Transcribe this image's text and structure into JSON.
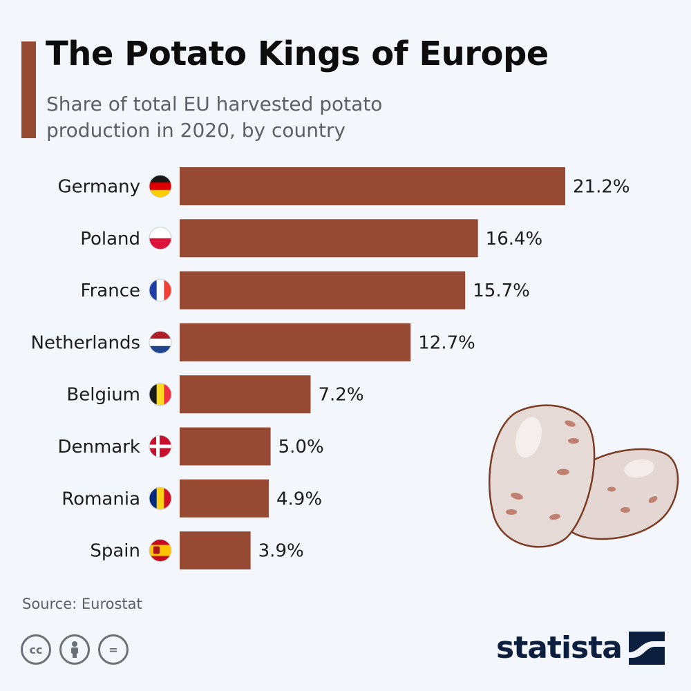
{
  "header": {
    "title": "The Potato Kings of Europe",
    "subtitle": "Share of total EU harvested potato production in 2020, by country"
  },
  "chart_data": {
    "type": "bar",
    "orientation": "horizontal",
    "categories": [
      "Germany",
      "Poland",
      "France",
      "Netherlands",
      "Belgium",
      "Denmark",
      "Romania",
      "Spain"
    ],
    "values": [
      21.2,
      16.4,
      15.7,
      12.7,
      7.2,
      5.0,
      4.9,
      3.9
    ],
    "value_labels": [
      "21.2%",
      "16.4%",
      "15.7%",
      "12.7%",
      "7.2%",
      "5.0%",
      "4.9%",
      "3.9%"
    ],
    "flags": [
      "germany-flag-icon",
      "poland-flag-icon",
      "france-flag-icon",
      "netherlands-flag-icon",
      "belgium-flag-icon",
      "denmark-flag-icon",
      "romania-flag-icon",
      "spain-flag-icon"
    ],
    "bar_color": "#964a33",
    "xlim": [
      0,
      21.2
    ],
    "grid": false,
    "legend": "none",
    "title": "The Potato Kings of Europe",
    "subtitle": "Share of total EU harvested potato production in 2020, by country"
  },
  "footer": {
    "source": "Source: Eurostat",
    "brand": "statista",
    "license_icons": [
      "cc-icon",
      "attribution-icon",
      "no-derivatives-icon"
    ],
    "cc_text": "cc",
    "nd_text": "="
  },
  "colors": {
    "accent": "#964a33",
    "background": "#f3f6fa",
    "brand": "#0c1f3f"
  }
}
